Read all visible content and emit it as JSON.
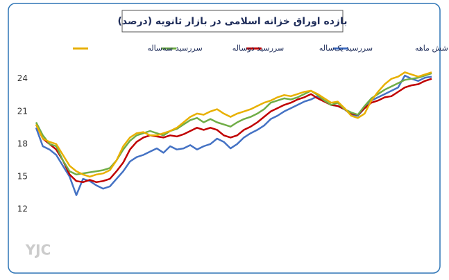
{
  "chart_data": {
    "type": "line",
    "title": "بازده اوراق خزانه اسلامی در بازار ثانویه (درصد)",
    "watermark": "YJC",
    "categories": [
      null,
      null,
      null,
      null,
      null,
      null,
      null,
      null,
      null,
      null,
      null,
      null,
      null,
      null,
      null,
      null,
      null,
      null,
      null,
      null,
      null,
      null,
      null,
      null,
      null,
      null,
      null,
      null,
      null,
      null,
      null,
      null,
      null,
      null,
      null,
      null,
      null,
      null,
      null,
      null,
      null,
      null,
      null,
      null,
      null,
      null,
      null,
      null,
      null,
      null,
      null,
      null,
      null,
      null,
      null,
      null,
      null,
      null,
      null,
      null
    ],
    "series": [
      {
        "name": "سررسید  شش ماهه",
        "color": "#4472c4",
        "values": [
          19.5,
          17.8,
          17.5,
          17,
          16,
          15,
          13.3,
          14.8,
          14.6,
          14.2,
          13.9,
          14.1,
          14.8,
          15.5,
          16.4,
          16.8,
          17,
          17.3,
          17.6,
          17.2,
          17.8,
          17.5,
          17.6,
          17.9,
          17.5,
          17.8,
          18,
          18.5,
          18.2,
          17.6,
          18,
          18.6,
          19,
          19.3,
          19.7,
          20.3,
          20.6,
          21,
          21.3,
          21.6,
          21.9,
          22.1,
          22.4,
          22,
          21.6,
          21.5,
          21.2,
          20.7,
          20.6,
          21.3,
          22,
          22.3,
          22.6,
          22.9,
          23.2,
          24.3,
          24,
          23.8,
          24.1,
          24.2
        ]
      },
      {
        "name": "سررسید یک‌ساله",
        "color": "#c00000",
        "values": [
          19.8,
          18.5,
          18,
          17.5,
          16.5,
          15.2,
          14.6,
          14.5,
          14.7,
          14.5,
          14.6,
          14.8,
          15.5,
          16.3,
          17.5,
          18.2,
          18.6,
          18.8,
          18.7,
          18.6,
          18.8,
          18.7,
          18.9,
          19.2,
          19.5,
          19.3,
          19.5,
          19.3,
          18.8,
          18.6,
          18.8,
          19.3,
          19.6,
          20,
          20.5,
          21,
          21.3,
          21.6,
          21.8,
          22.1,
          22.3,
          22.6,
          22.2,
          21.9,
          21.6,
          21.5,
          21.2,
          20.8,
          20.7,
          21.3,
          21.8,
          22,
          22.3,
          22.4,
          22.8,
          23.2,
          23.4,
          23.5,
          23.8,
          24.0
        ]
      },
      {
        "name": "سررسید دوساله",
        "color": "#70ad47",
        "values": [
          20,
          18.8,
          18,
          17.8,
          16.5,
          15.5,
          15.2,
          15.3,
          15.4,
          15.5,
          15.6,
          15.8,
          16.5,
          17.5,
          18.3,
          18.8,
          19.0,
          19.2,
          19,
          18.8,
          19.2,
          19.4,
          19.8,
          20.2,
          20.4,
          20,
          20.3,
          20,
          19.8,
          19.6,
          20,
          20.3,
          20.5,
          20.8,
          21.2,
          21.8,
          22,
          22.2,
          22.1,
          22.3,
          22.6,
          22.9,
          22.5,
          22,
          21.6,
          21.8,
          21.2,
          20.9,
          20.7,
          21.5,
          22.2,
          22.6,
          23,
          23.3,
          23.6,
          23.9,
          24.0,
          24.1,
          24.3,
          24.5
        ]
      },
      {
        "name": "سررسید سه‌ساله",
        "color": "#e8b000",
        "values": [
          19.8,
          18.5,
          18.2,
          18,
          17,
          16,
          15.5,
          15.2,
          15,
          15.2,
          15.3,
          15.6,
          16.5,
          17.8,
          18.6,
          19,
          19.1,
          18.8,
          18.8,
          19,
          19.2,
          19.5,
          20,
          20.5,
          20.8,
          20.7,
          21,
          21.2,
          20.8,
          20.5,
          20.8,
          21,
          21.2,
          21.5,
          21.8,
          22,
          22.3,
          22.5,
          22.4,
          22.6,
          22.8,
          22.9,
          22.6,
          22.2,
          21.8,
          21.9,
          21.3,
          20.6,
          20.4,
          20.8,
          22,
          22.8,
          23.5,
          24,
          24.2,
          24.6,
          24.4,
          24.2,
          24.4,
          24.6
        ]
      }
    ],
    "ylim": [
      12,
      25
    ],
    "yticks": [
      12,
      15,
      18,
      21,
      24
    ],
    "grid": false,
    "legend": "top"
  }
}
